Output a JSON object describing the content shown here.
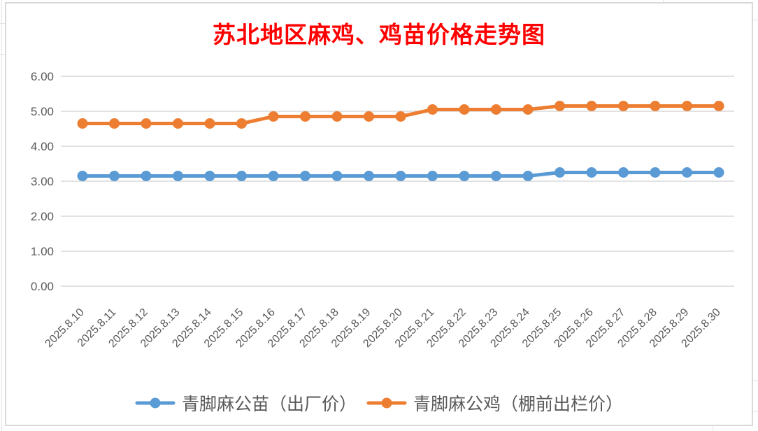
{
  "window": {
    "background_color": "#FFFFFF",
    "chart_border_color": "#D9D9D9",
    "spreadsheet_gridline_color": "#E2E2E2"
  },
  "chart_data": {
    "type": "line",
    "title": "苏北地区麻鸡、鸡苗价格走势图",
    "title_color": "#FF0000",
    "xlabel": "",
    "ylabel": "",
    "categories": [
      "2025.8.10",
      "2025.8.11",
      "2025.8.12",
      "2025.8.13",
      "2025.8.14",
      "2025.8.15",
      "2025.8.16",
      "2025.8.17",
      "2025.8.18",
      "2025.8.19",
      "2025.8.20",
      "2025.8.21",
      "2025.8.22",
      "2025.8.23",
      "2025.8.24",
      "2025.8.25",
      "2025.8.26",
      "2025.8.27",
      "2025.8.28",
      "2025.8.29",
      "2025.8.30"
    ],
    "series": [
      {
        "name": "青脚麻公苗（出厂价）",
        "color": "#5B9BD5",
        "values": [
          3.15,
          3.15,
          3.15,
          3.15,
          3.15,
          3.15,
          3.15,
          3.15,
          3.15,
          3.15,
          3.15,
          3.15,
          3.15,
          3.15,
          3.15,
          3.25,
          3.25,
          3.25,
          3.25,
          3.25,
          3.25
        ]
      },
      {
        "name": "青脚麻公鸡（棚前出栏价）",
        "color": "#ED7D31",
        "values": [
          4.65,
          4.65,
          4.65,
          4.65,
          4.65,
          4.65,
          4.85,
          4.85,
          4.85,
          4.85,
          4.85,
          5.05,
          5.05,
          5.05,
          5.05,
          5.15,
          5.15,
          5.15,
          5.15,
          5.15,
          5.15
        ]
      }
    ],
    "ylim": [
      0,
      6
    ],
    "ytick_step": 1,
    "ytick_labels": [
      "0.00",
      "1.00",
      "2.00",
      "3.00",
      "4.00",
      "5.00",
      "6.00"
    ],
    "grid": true,
    "gridline_color": "#D9D9D9",
    "axis_label_color": "#595959",
    "legend_position": "bottom",
    "x_label_rotation_deg": -45
  }
}
